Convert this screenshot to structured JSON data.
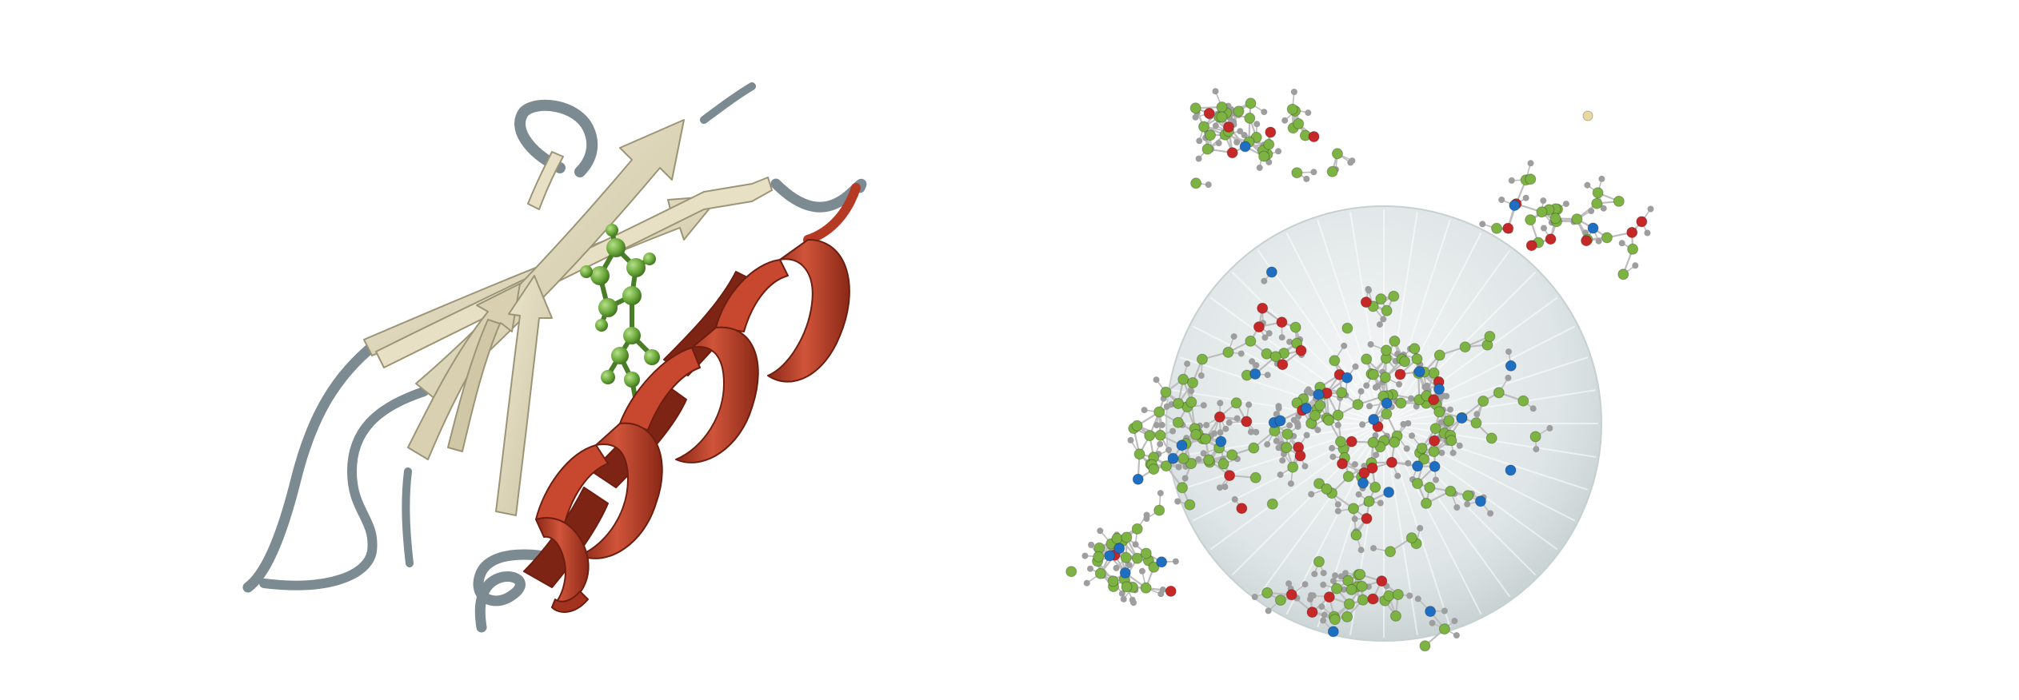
{
  "panels": [
    {
      "id": "cartoon",
      "representation": "ribbon-cartoon",
      "elements": [
        "beta-sheet",
        "alpha-helix",
        "loops",
        "ball-and-stick-ligand"
      ]
    },
    {
      "id": "atomic",
      "representation": "ball-and-stick-with-sphere",
      "elements": [
        "all-atom-model",
        "translucent-sphere",
        "radial-rays"
      ]
    }
  ],
  "colors": {
    "background": "#ffffff",
    "sheet": "#e2dcc2",
    "sheet_dark": "#b8b08e",
    "helix": "#b53a24",
    "helix_light": "#d2553c",
    "helix_dark": "#7d2414",
    "loop": "#7c8a92",
    "ligand": "#6aa83a",
    "ligand_dark": "#3f7020",
    "carbon": "#7cb342",
    "oxygen": "#c62828",
    "nitrogen": "#1e6fc2",
    "hydrogen": "#9e9e9e",
    "sulfur": "#e8d9a0",
    "bond": "#bdbdbd",
    "sphere": "#d7dfe0"
  },
  "atom_counts": {
    "carbon": 230,
    "hydrogen": 300,
    "oxygen": 45,
    "nitrogen": 32,
    "sulfur": 1
  }
}
